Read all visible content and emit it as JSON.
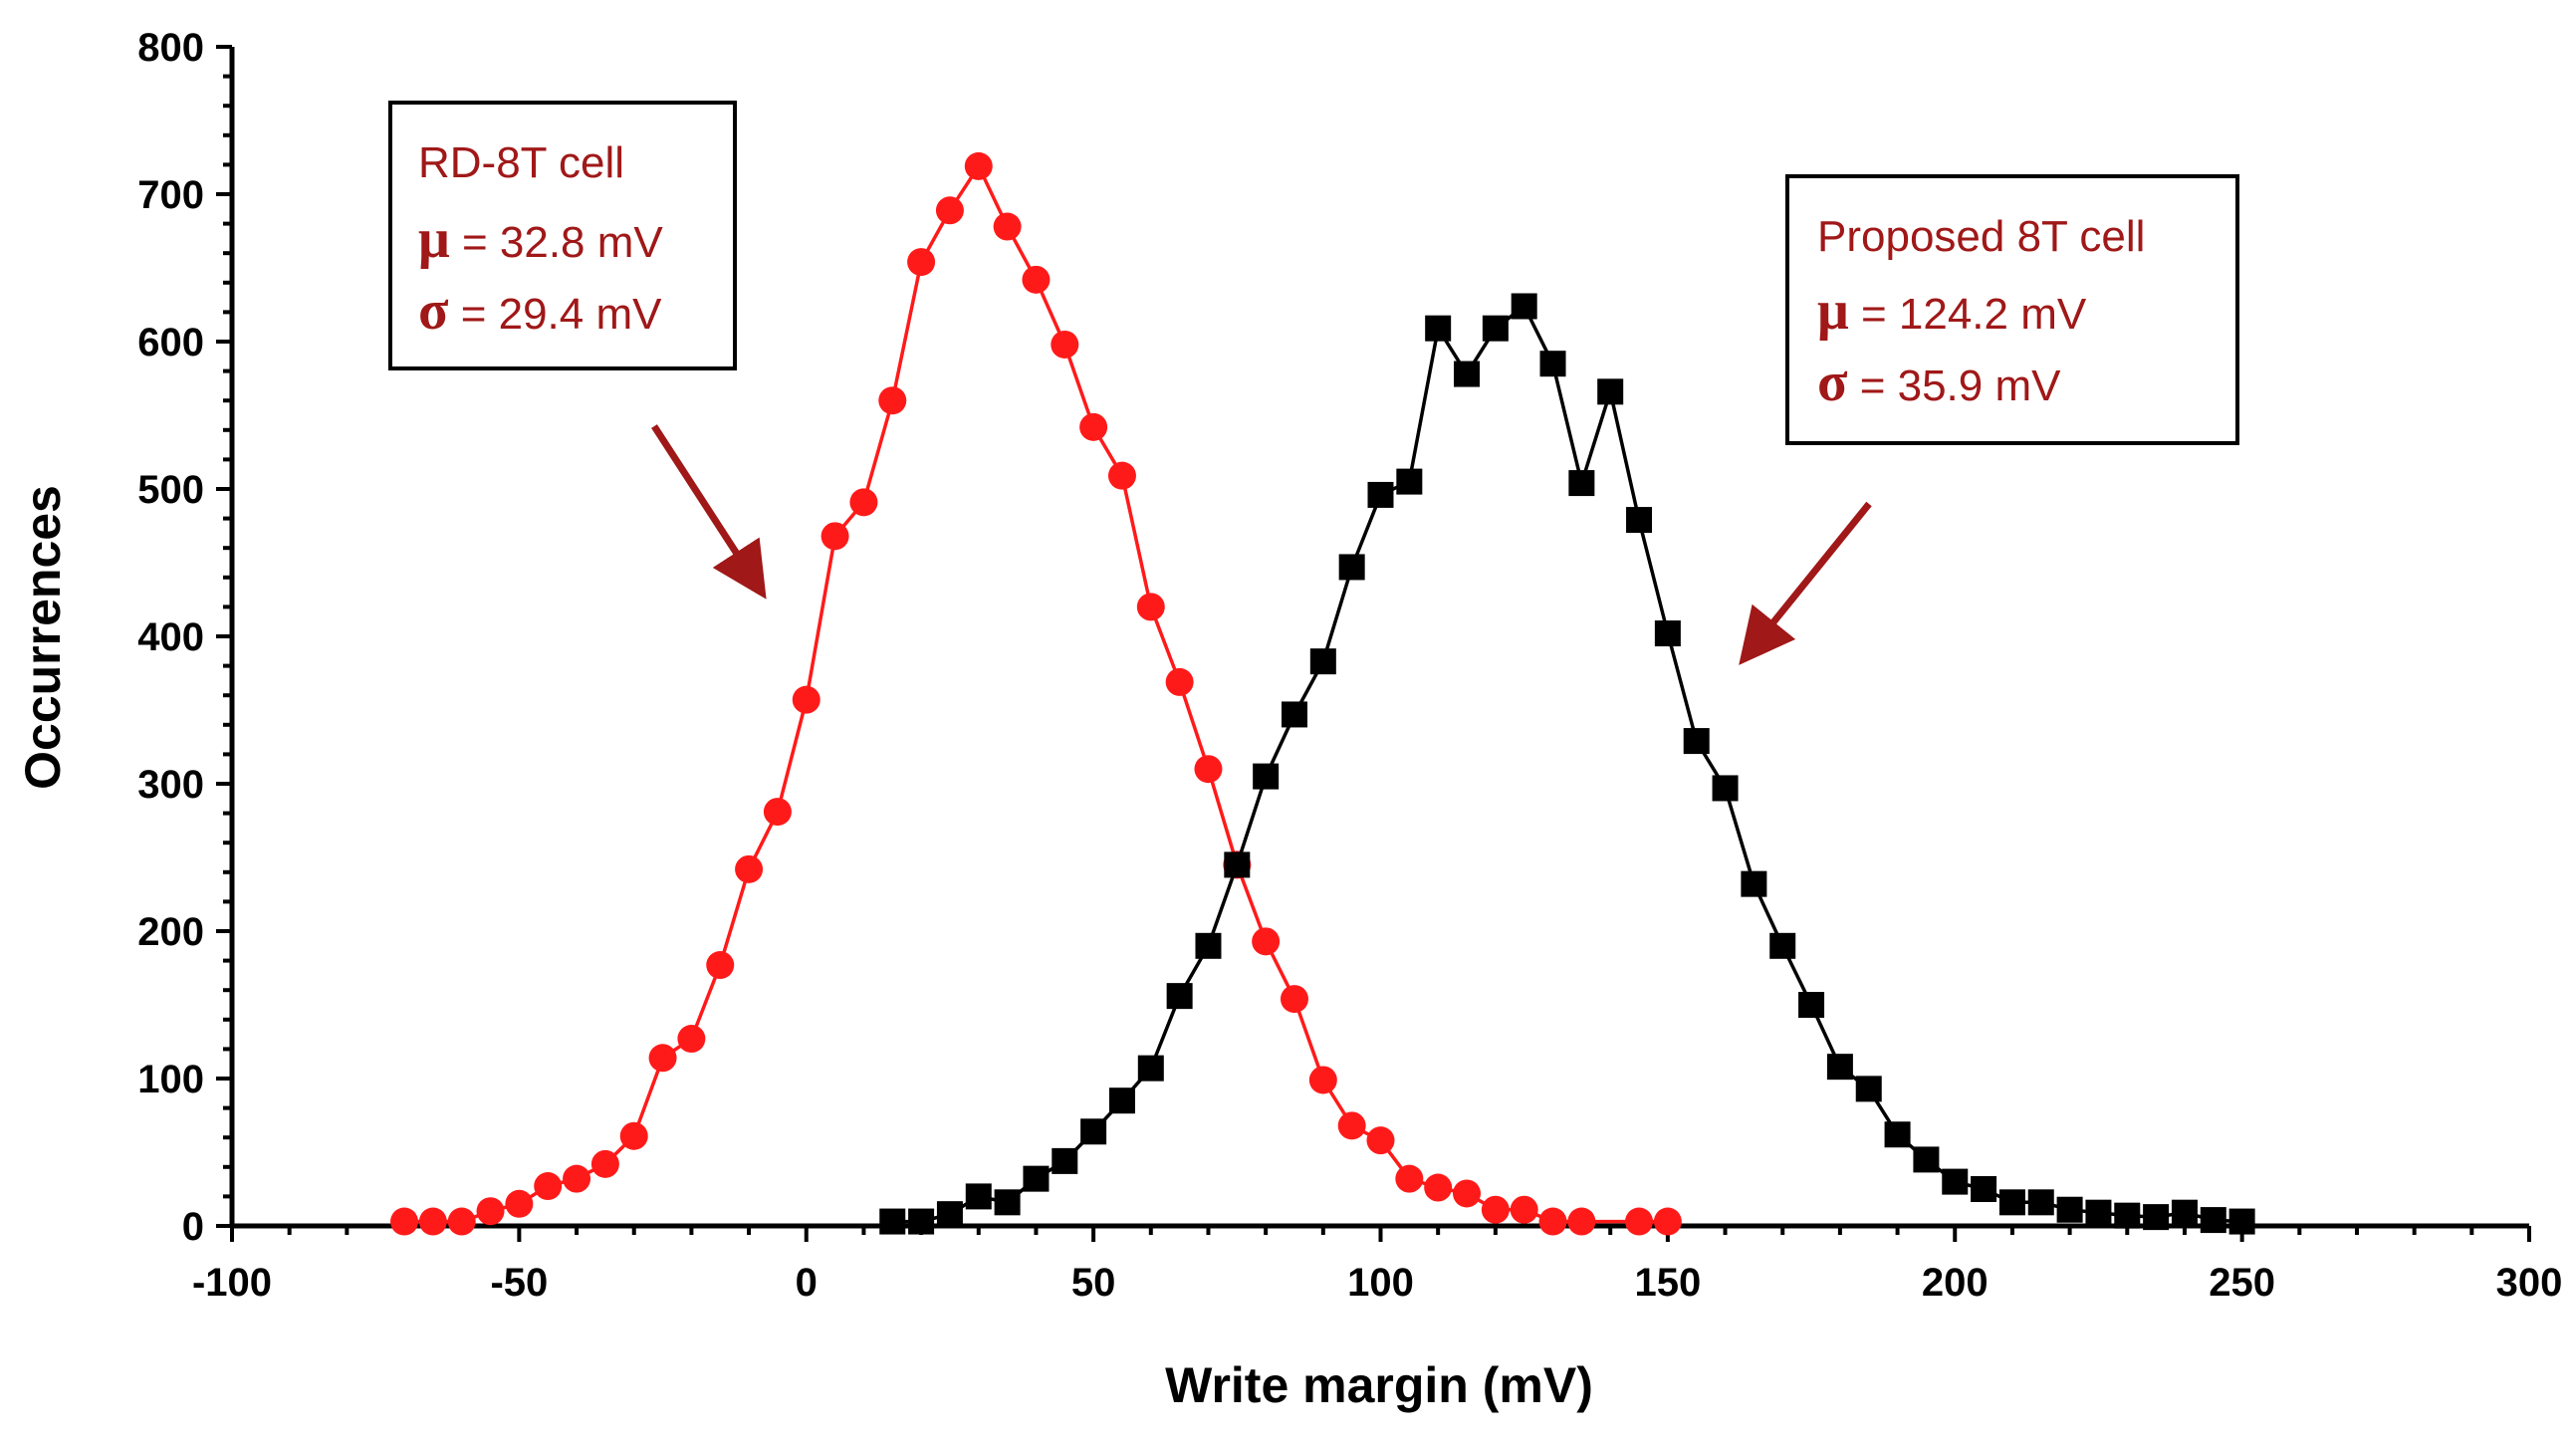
{
  "chart_data": {
    "type": "line",
    "title": "",
    "xlabel": "Write margin (mV)",
    "ylabel": "Occurrences",
    "xlim": [
      -100,
      300
    ],
    "ylim": [
      0,
      800
    ],
    "x_ticks": [
      -100,
      -50,
      0,
      50,
      100,
      150,
      200,
      250,
      300
    ],
    "y_ticks": [
      0,
      100,
      200,
      300,
      400,
      500,
      600,
      700,
      800
    ],
    "grid": false,
    "series": [
      {
        "name": "RD-8T cell",
        "color": "#ff1a1a",
        "marker": "circle",
        "x": [
          -70,
          -65,
          -60,
          -55,
          -50,
          -45,
          -40,
          -35,
          -30,
          -25,
          -20,
          -15,
          -10,
          -5,
          0,
          5,
          10,
          15,
          20,
          25,
          30,
          35,
          40,
          45,
          50,
          55,
          60,
          65,
          70,
          75,
          80,
          85,
          90,
          95,
          100,
          105,
          110,
          115,
          120,
          125,
          130,
          135,
          145,
          150
        ],
        "values": [
          3,
          3,
          3,
          10,
          15,
          27,
          32,
          42,
          61,
          114,
          127,
          177,
          242,
          281,
          357,
          468,
          491,
          560,
          654,
          689,
          719,
          678,
          642,
          598,
          542,
          509,
          420,
          369,
          310,
          245,
          193,
          154,
          99,
          68,
          58,
          32,
          26,
          22,
          11,
          11,
          3,
          3,
          3,
          3
        ]
      },
      {
        "name": "Proposed 8T cell",
        "color": "#000000",
        "marker": "square",
        "x": [
          15,
          20,
          25,
          30,
          35,
          40,
          45,
          50,
          55,
          60,
          65,
          70,
          75,
          80,
          85,
          90,
          95,
          100,
          105,
          110,
          115,
          120,
          125,
          130,
          135,
          140,
          145,
          150,
          155,
          160,
          165,
          170,
          175,
          180,
          185,
          190,
          195,
          200,
          205,
          210,
          215,
          220,
          225,
          230,
          235,
          240,
          245,
          250
        ],
        "values": [
          3,
          3,
          8,
          20,
          16,
          32,
          44,
          64,
          85,
          107,
          156,
          190,
          245,
          305,
          347,
          383,
          447,
          496,
          505,
          609,
          578,
          609,
          624,
          585,
          504,
          566,
          479,
          402,
          329,
          297,
          232,
          190,
          150,
          108,
          93,
          62,
          45,
          30,
          25,
          16,
          16,
          11,
          9,
          7,
          6,
          9,
          4,
          3
        ]
      }
    ],
    "annotations": [
      {
        "title": "RD-8T cell",
        "mu_symbol": "μ",
        "mu_text": " = 32.8 mV",
        "sigma_symbol": "σ",
        "sigma_text": " = 29.4 mV"
      },
      {
        "title": "Proposed 8T cell",
        "mu_symbol": "μ",
        "mu_text": " = 124.2 mV",
        "sigma_symbol": "σ",
        "sigma_text": " = 35.9 mV"
      }
    ],
    "annotation_color": "#a01818"
  }
}
